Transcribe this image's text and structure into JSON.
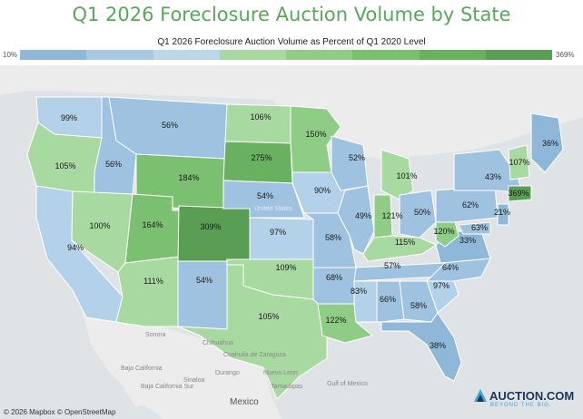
{
  "title": "Q1 2026 Foreclosure Auction Volume by State",
  "subtitle": "Q1 2026 Foreclosure Auction Volume as Percent of Q1 2020 Level",
  "legend": {
    "min_label": "10%",
    "max_label": "369%",
    "colors": [
      "#8fb8d8",
      "#a9c9e3",
      "#bcd7ea",
      "#a7d9a0",
      "#8fcc86",
      "#7ac070",
      "#69b061",
      "#5a9e56"
    ]
  },
  "attribution": "© 2026 Mapbox © OpenStreetMap",
  "logo": {
    "text": "AUCTION.COM",
    "tagline": "BEYOND THE BIG."
  },
  "basemap_labels": {
    "united_states": "United States",
    "mexico": "Mexico",
    "places": [
      "Sonora",
      "Chihuahua",
      "Coahuila de Zaragoza",
      "Nuevo Leon",
      "Baja California",
      "Baja California Sur",
      "Sinaloa",
      "Durango",
      "Tamaulipas",
      "Gulf of Mexico"
    ]
  },
  "chart_data": {
    "type": "choropleth",
    "metric": "Q1 2026 foreclosure auction volume as percent of Q1 2020 level",
    "scale_range": [
      10,
      369
    ],
    "states": [
      {
        "code": "WA",
        "value": "99%"
      },
      {
        "code": "OR",
        "value": "105%"
      },
      {
        "code": "CA",
        "value": "94%"
      },
      {
        "code": "ID",
        "value": "56%"
      },
      {
        "code": "NV",
        "value": "100%"
      },
      {
        "code": "MT",
        "value": "56%"
      },
      {
        "code": "WY",
        "value": "184%"
      },
      {
        "code": "UT",
        "value": "164%"
      },
      {
        "code": "AZ",
        "value": "111%"
      },
      {
        "code": "CO",
        "value": "309%"
      },
      {
        "code": "NM",
        "value": "54%"
      },
      {
        "code": "ND",
        "value": "106%"
      },
      {
        "code": "SD",
        "value": "275%"
      },
      {
        "code": "NE",
        "value": "54%"
      },
      {
        "code": "KS",
        "value": "97%"
      },
      {
        "code": "OK",
        "value": "109%"
      },
      {
        "code": "TX",
        "value": "105%"
      },
      {
        "code": "MN",
        "value": "150%"
      },
      {
        "code": "IA",
        "value": "90%"
      },
      {
        "code": "MO",
        "value": "58%"
      },
      {
        "code": "AR",
        "value": "68%"
      },
      {
        "code": "LA",
        "value": "122%"
      },
      {
        "code": "WI",
        "value": "52%"
      },
      {
        "code": "IL",
        "value": "49%"
      },
      {
        "code": "MI",
        "value": "101%"
      },
      {
        "code": "IN",
        "value": "121%"
      },
      {
        "code": "OH",
        "value": "50%"
      },
      {
        "code": "KY",
        "value": "115%"
      },
      {
        "code": "TN",
        "value": "57%"
      },
      {
        "code": "MS",
        "value": "83%"
      },
      {
        "code": "AL",
        "value": "66%"
      },
      {
        "code": "GA",
        "value": "58%"
      },
      {
        "code": "FL",
        "value": "38%"
      },
      {
        "code": "SC",
        "value": "97%"
      },
      {
        "code": "NC",
        "value": "64%"
      },
      {
        "code": "VA",
        "value": "33%"
      },
      {
        "code": "WV",
        "value": "120%"
      },
      {
        "code": "MD",
        "value": "63%"
      },
      {
        "code": "PA",
        "value": "62%"
      },
      {
        "code": "NJ",
        "value": "21%"
      },
      {
        "code": "NY",
        "value": "43%"
      },
      {
        "code": "CT",
        "value": "369%"
      },
      {
        "code": "VT",
        "value": "107%"
      },
      {
        "code": "ME",
        "value": "36%"
      }
    ]
  }
}
